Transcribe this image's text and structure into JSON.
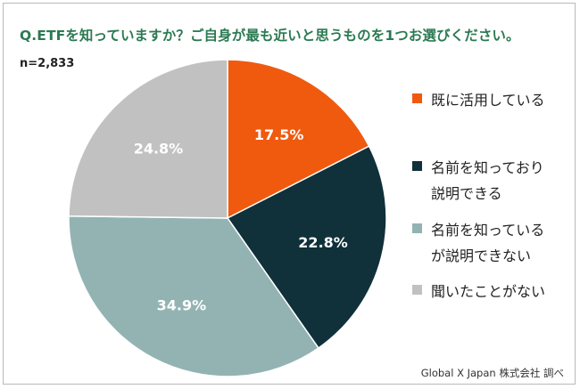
{
  "title": "Q.ETFを知っていますか？ご自身が最も近いと思うものを1つお選びください。",
  "sample_size": "n=2,833",
  "source": "Global X Japan 株式会社 調べ",
  "chart_data": {
    "type": "pie",
    "title": "Q.ETFを知っていますか？ご自身が最も近いと思うものを1つお選びください。",
    "unit": "%",
    "start": "12 o'clock",
    "direction": "clockwise",
    "legend_position": "right",
    "slices": [
      {
        "label": "既に活用している",
        "value": 17.5,
        "display": "17.5%",
        "color": "#f05a0f",
        "label_color": "#ffffff"
      },
      {
        "label": "名前を知っており\n説明できる",
        "value": 22.8,
        "display": "22.8%",
        "color": "#10303a",
        "label_color": "#ffffff"
      },
      {
        "label": "名前を知っている\nが説明できない",
        "value": 34.9,
        "display": "34.9%",
        "color": "#93b3b3",
        "label_color": "#ffffff"
      },
      {
        "label": "聞いたことがない",
        "value": 24.8,
        "display": "24.8%",
        "color": "#c1c1c1",
        "label_color": "#ffffff"
      }
    ]
  }
}
